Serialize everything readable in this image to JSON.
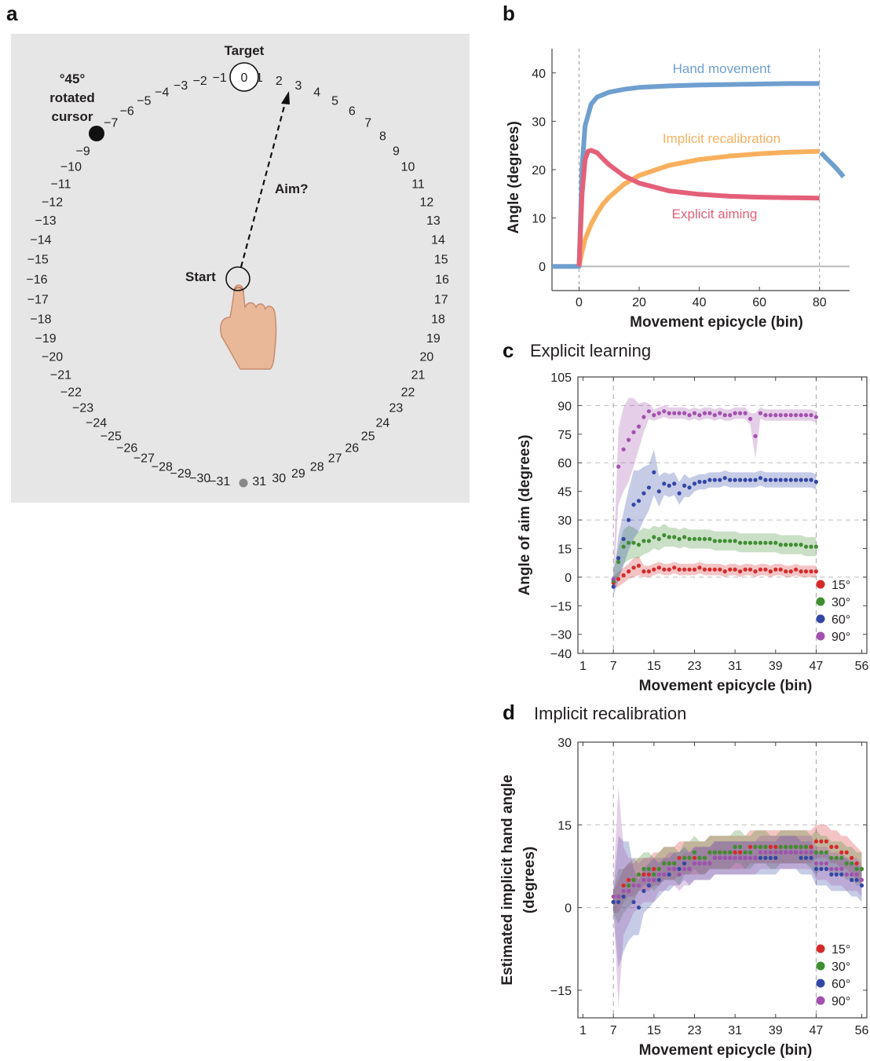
{
  "panel_a": {
    "label": "a",
    "target_label": "Target",
    "target_value": "0",
    "cursor_label_lines": [
      "°45°",
      "rotated",
      "cursor"
    ],
    "aim_label": "Aim?",
    "start_label": "Start",
    "dial_numbers": [
      "-31",
      "-30",
      "-29",
      "-28",
      "-27",
      "-26",
      "-25",
      "-24",
      "-23",
      "-22",
      "-21",
      "-20",
      "-19",
      "-18",
      "-17",
      "-16",
      "-15",
      "-14",
      "-13",
      "-12",
      "-11",
      "-10",
      "-9",
      "-7",
      "-6",
      "-5",
      "-4",
      "-3",
      "-2",
      "-1",
      "1",
      "2",
      "3",
      "4",
      "5",
      "6",
      "7",
      "8",
      "9",
      "10",
      "11",
      "12",
      "13",
      "14",
      "15",
      "16",
      "17",
      "18",
      "19",
      "20",
      "21",
      "22",
      "23",
      "24",
      "25",
      "26",
      "27",
      "28",
      "29",
      "30",
      "31"
    ],
    "colors": {
      "background": "#e6e6e7",
      "cursor_dot": "#111111",
      "start_dot": "#888888"
    }
  },
  "chart_data": [
    {
      "panel": "b",
      "type": "line",
      "title": "",
      "xlabel": "Movement epicycle (bin)",
      "ylabel": "Angle (degrees)",
      "xticks": [
        "0",
        "20",
        "40",
        "60",
        "80"
      ],
      "yticks": [
        "0",
        "10",
        "20",
        "30",
        "40"
      ],
      "xlim": [
        -9,
        90
      ],
      "ylim": [
        -5,
        45
      ],
      "vlines": [
        0,
        80
      ],
      "series": [
        {
          "name": "Hand movement",
          "color": "#6f9fcf",
          "x": [
            -9,
            0,
            1,
            2,
            4,
            6,
            10,
            15,
            20,
            30,
            40,
            50,
            60,
            70,
            80,
            80.5,
            82,
            84,
            86,
            88
          ],
          "y": [
            0,
            0,
            20.5,
            29,
            33.5,
            35,
            36,
            36.6,
            37,
            37.3,
            37.5,
            37.6,
            37.7,
            37.8,
            37.8,
            23.5,
            22.5,
            21.3,
            20,
            18.5
          ]
        },
        {
          "name": "Implicit recalibration",
          "color": "#f8b05e",
          "x": [
            0,
            1,
            2,
            4,
            6,
            8,
            10,
            15,
            20,
            30,
            40,
            50,
            60,
            70,
            80
          ],
          "y": [
            0,
            3,
            5.6,
            8.7,
            11,
            12.9,
            14.3,
            17,
            18.8,
            20.9,
            22.1,
            22.8,
            23.3,
            23.6,
            23.8
          ]
        },
        {
          "name": "Explicit aiming",
          "color": "#e46078",
          "x": [
            0,
            1,
            2,
            3,
            4,
            6,
            8,
            10,
            15,
            20,
            30,
            40,
            50,
            60,
            70,
            80
          ],
          "y": [
            0,
            15,
            22,
            23.8,
            24,
            23.5,
            22.2,
            21,
            18.7,
            17.2,
            15.6,
            14.9,
            14.5,
            14.3,
            14.2,
            14.1
          ]
        }
      ]
    },
    {
      "panel": "c",
      "type": "scatter",
      "title": "Explicit learning",
      "xlabel": "Movement epicycle (bin)",
      "ylabel": "Angle of aim (degrees)",
      "xticks": [
        "1",
        "7",
        "15",
        "23",
        "31",
        "39",
        "47",
        "56"
      ],
      "yticks": [
        "105",
        "90",
        "75",
        "60",
        "45",
        "30",
        "15",
        "0",
        "−15",
        "−30",
        "−40"
      ],
      "xlim": [
        0,
        57
      ],
      "ylim": [
        -40,
        105
      ],
      "hgrid": [
        90,
        60,
        30,
        0
      ],
      "vgrid": [
        7,
        47
      ],
      "legend_position": "bottom-right",
      "x": [
        7,
        8,
        9,
        10,
        11,
        12,
        13,
        14,
        15,
        16,
        17,
        18,
        19,
        20,
        21,
        22,
        23,
        24,
        25,
        26,
        27,
        28,
        29,
        30,
        31,
        32,
        33,
        34,
        35,
        36,
        37,
        38,
        39,
        40,
        41,
        42,
        43,
        44,
        45,
        46,
        47
      ],
      "series": [
        {
          "name": "15°",
          "color": "#d62a2a",
          "y": [
            -3,
            -1,
            1,
            3,
            5,
            6,
            3,
            3,
            4,
            5,
            4,
            4,
            5,
            4,
            4,
            4,
            4,
            5,
            4,
            4,
            4,
            4,
            3,
            4,
            4,
            3,
            4,
            4,
            3,
            4,
            4,
            3,
            4,
            4,
            3,
            3,
            4,
            3,
            3,
            3,
            3
          ],
          "spread": [
            3,
            4,
            4,
            4,
            5,
            5,
            3,
            3,
            3,
            3,
            3,
            3,
            3,
            3,
            3,
            3,
            3,
            3,
            3,
            3,
            3,
            3,
            3,
            3,
            3,
            3,
            3,
            3,
            3,
            3,
            3,
            3,
            3,
            3,
            3,
            3,
            3,
            3,
            3,
            3,
            3
          ]
        },
        {
          "name": "30°",
          "color": "#3f8e32",
          "y": [
            -2,
            8,
            16,
            18,
            18,
            17,
            19,
            19,
            21,
            20,
            22,
            21,
            21,
            20,
            21,
            20,
            20,
            20,
            20,
            20,
            19,
            19,
            19,
            19,
            19,
            18,
            18,
            18,
            18,
            18,
            18,
            18,
            18,
            17,
            17,
            17,
            17,
            17,
            16,
            16,
            16
          ],
          "spread": [
            5,
            8,
            9,
            9,
            8,
            7,
            7,
            6,
            6,
            6,
            6,
            5,
            5,
            5,
            5,
            5,
            5,
            5,
            5,
            5,
            5,
            5,
            5,
            5,
            5,
            5,
            5,
            5,
            5,
            5,
            5,
            5,
            5,
            5,
            5,
            5,
            5,
            5,
            5,
            5,
            5
          ]
        },
        {
          "name": "60°",
          "color": "#3347a5",
          "y": [
            -5,
            10,
            20,
            30,
            38,
            40,
            44,
            47,
            55,
            45,
            49,
            48,
            49,
            44,
            48,
            47,
            49,
            50,
            50,
            51,
            51,
            51,
            52,
            51,
            51,
            51,
            51,
            51,
            51,
            52,
            51,
            51,
            51,
            51,
            51,
            51,
            51,
            51,
            51,
            51,
            50
          ],
          "spread": [
            5,
            12,
            14,
            16,
            18,
            16,
            14,
            12,
            12,
            8,
            6,
            6,
            6,
            6,
            6,
            5,
            4,
            4,
            4,
            4,
            4,
            4,
            4,
            4,
            4,
            4,
            4,
            4,
            4,
            4,
            4,
            4,
            4,
            4,
            4,
            4,
            4,
            4,
            4,
            4,
            4
          ]
        },
        {
          "name": "90°",
          "color": "#a252ae",
          "y": [
            -1,
            58,
            67,
            72,
            76,
            79,
            84,
            87,
            85,
            86,
            87,
            86,
            86,
            86,
            86,
            85,
            86,
            85,
            86,
            86,
            85,
            86,
            85,
            85,
            86,
            86,
            86,
            83,
            74,
            86,
            85,
            85,
            85,
            85,
            85,
            85,
            85,
            85,
            85,
            85,
            84
          ],
          "spread": [
            5,
            20,
            22,
            22,
            18,
            12,
            8,
            4,
            3,
            3,
            3,
            3,
            3,
            3,
            3,
            3,
            3,
            3,
            3,
            3,
            3,
            3,
            3,
            3,
            3,
            3,
            3,
            3,
            12,
            3,
            3,
            3,
            3,
            3,
            3,
            3,
            3,
            3,
            3,
            3,
            3
          ]
        }
      ]
    },
    {
      "panel": "d",
      "type": "scatter",
      "title": "Implicit recalibration",
      "xlabel": "Movement epicycle (bin)",
      "ylabel_lines": [
        "Estimated implicit hand angle",
        "(degrees)"
      ],
      "xticks": [
        "1",
        "7",
        "15",
        "23",
        "31",
        "39",
        "47",
        "56"
      ],
      "yticks": [
        "30",
        "15",
        "0",
        "−15"
      ],
      "xlim": [
        0,
        57
      ],
      "ylim": [
        -20,
        30
      ],
      "hgrid": [
        15,
        0
      ],
      "vgrid": [
        7,
        47
      ],
      "legend_position": "bottom-right",
      "x": [
        7,
        8,
        9,
        10,
        11,
        12,
        13,
        14,
        15,
        16,
        17,
        18,
        19,
        20,
        21,
        22,
        23,
        24,
        25,
        26,
        27,
        28,
        29,
        30,
        31,
        32,
        33,
        34,
        35,
        36,
        37,
        38,
        39,
        40,
        41,
        42,
        43,
        44,
        45,
        46,
        47,
        48,
        49,
        50,
        51,
        52,
        53,
        54,
        55,
        56
      ],
      "series": [
        {
          "name": "15°",
          "color": "#d62a2a",
          "y": [
            1,
            2,
            4,
            5,
            5,
            6,
            6,
            6,
            7,
            7,
            8,
            8,
            8,
            9,
            9,
            9,
            9,
            9,
            9,
            10,
            10,
            10,
            10,
            10,
            10,
            10,
            10,
            11,
            11,
            11,
            11,
            11,
            11,
            11,
            11,
            11,
            11,
            11,
            11,
            11,
            12,
            12,
            12,
            11,
            11,
            10,
            10,
            9,
            8,
            7
          ],
          "spread": [
            2,
            3,
            3,
            3,
            3,
            3,
            3,
            3,
            3,
            3,
            3,
            3,
            3,
            3,
            3,
            3,
            3,
            3,
            3,
            3,
            3,
            3,
            3,
            3,
            3,
            3,
            3,
            3,
            3,
            3,
            3,
            3,
            3,
            3,
            3,
            3,
            3,
            3,
            3,
            3,
            3,
            3,
            3,
            3,
            3,
            3,
            3,
            3,
            3,
            3
          ]
        },
        {
          "name": "30°",
          "color": "#3f8e32",
          "y": [
            1,
            2,
            3,
            4,
            5,
            6,
            7,
            7,
            6,
            7,
            8,
            8,
            8,
            7,
            9,
            9,
            10,
            9,
            9,
            10,
            10,
            10,
            10,
            10,
            11,
            11,
            10,
            10,
            11,
            11,
            11,
            10,
            10,
            11,
            11,
            11,
            11,
            11,
            11,
            10,
            10,
            10,
            10,
            9,
            9,
            9,
            8,
            8,
            7,
            7
          ],
          "spread": [
            2,
            5,
            4,
            4,
            4,
            3,
            3,
            3,
            3,
            3,
            3,
            3,
            3,
            3,
            3,
            3,
            3,
            3,
            3,
            3,
            3,
            3,
            3,
            3,
            3,
            3,
            3,
            3,
            3,
            3,
            3,
            3,
            3,
            3,
            3,
            3,
            3,
            3,
            3,
            3,
            4,
            3,
            3,
            3,
            3,
            3,
            3,
            3,
            3,
            3
          ]
        },
        {
          "name": "60°",
          "color": "#3347a5",
          "y": [
            1,
            1,
            2,
            3,
            1,
            0,
            3,
            4,
            5,
            5,
            6,
            6,
            7,
            7,
            8,
            7,
            8,
            8,
            8,
            8,
            9,
            9,
            9,
            9,
            9,
            9,
            9,
            9,
            9,
            9,
            9,
            9,
            9,
            10,
            10,
            10,
            10,
            9,
            9,
            9,
            7,
            7,
            7,
            6,
            6,
            6,
            6,
            5,
            5,
            4
          ],
          "spread": [
            2,
            12,
            10,
            9,
            6,
            5,
            4,
            4,
            4,
            3,
            3,
            3,
            3,
            3,
            3,
            3,
            3,
            3,
            3,
            3,
            3,
            3,
            3,
            3,
            3,
            3,
            3,
            3,
            3,
            3,
            3,
            3,
            3,
            3,
            3,
            3,
            3,
            3,
            3,
            3,
            3,
            3,
            3,
            3,
            3,
            3,
            3,
            3,
            3,
            3
          ]
        },
        {
          "name": "90°",
          "color": "#a252ae",
          "y": [
            2,
            2,
            3,
            3,
            4,
            4,
            5,
            5,
            5,
            6,
            6,
            7,
            7,
            6,
            7,
            7,
            8,
            8,
            8,
            8,
            9,
            9,
            9,
            9,
            9,
            9,
            9,
            9,
            9,
            10,
            10,
            10,
            10,
            10,
            10,
            10,
            10,
            10,
            10,
            10,
            8,
            8,
            8,
            7,
            7,
            7,
            6,
            6,
            6,
            5
          ],
          "spread": [
            2,
            20,
            8,
            6,
            5,
            4,
            4,
            4,
            4,
            3,
            3,
            3,
            3,
            3,
            3,
            3,
            3,
            3,
            3,
            3,
            3,
            3,
            3,
            3,
            3,
            3,
            3,
            3,
            3,
            3,
            3,
            3,
            3,
            3,
            3,
            3,
            3,
            3,
            3,
            3,
            3,
            3,
            3,
            3,
            3,
            3,
            3,
            3,
            3,
            3
          ]
        }
      ]
    }
  ]
}
